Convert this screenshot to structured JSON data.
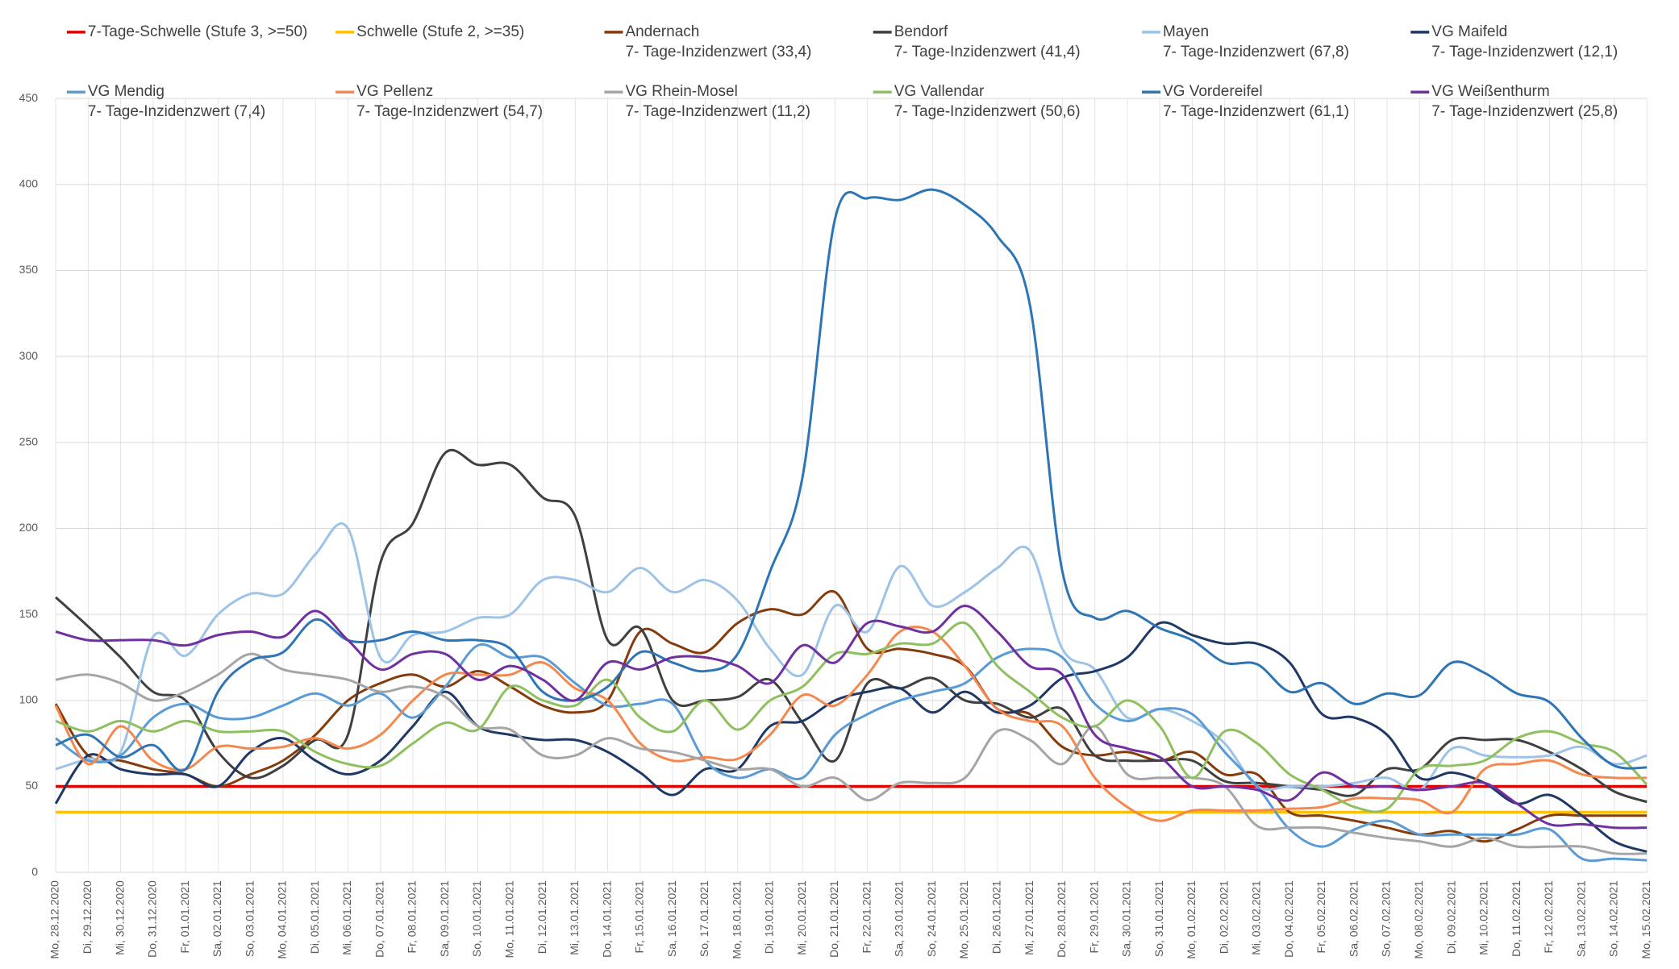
{
  "chart_data": {
    "type": "line",
    "ylim": [
      0,
      450
    ],
    "yticks": [
      0,
      50,
      100,
      150,
      200,
      250,
      300,
      350,
      400,
      450
    ],
    "grid": true,
    "smooth": true,
    "categories": [
      "Mo, 28.12.2020",
      "Di, 29.12.2020",
      "Mi, 30.12.2020",
      "Do, 31.12.2020",
      "Fr, 01.01.2021",
      "Sa, 02.01.2021",
      "So, 03.01.2021",
      "Mo, 04.01.2021",
      "Di, 05.01.2021",
      "Mi, 06.01.2021",
      "Do, 07.01.2021",
      "Fr, 08.01.2021",
      "Sa, 09.01.2021",
      "So, 10.01.2021",
      "Mo, 11.01.2021",
      "Di, 12.01.2021",
      "Mi, 13.01.2021",
      "Do, 14.01.2021",
      "Fr, 15.01.2021",
      "Sa, 16.01.2021",
      "So, 17.01.2021",
      "Mo, 18.01.2021",
      "Di, 19.01.2021",
      "Mi, 20.01.2021",
      "Do, 21.01.2021",
      "Fr, 22.01.2021",
      "Sa, 23.01.2021",
      "So, 24.01.2021",
      "Mo, 25.01.2021",
      "Di, 26.01.2021",
      "Mi, 27.01.2021",
      "Do, 28.01.2021",
      "Fr, 29.01.2021",
      "Sa, 30.01.2021",
      "So, 31.01.2021",
      "Mo, 01.02.2021",
      "Di, 02.02.2021",
      "Mi, 03.02.2021",
      "Do, 04.02.2021",
      "Fr, 05.02.2021",
      "Sa, 06.02.2021",
      "So, 07.02.2021",
      "Mo, 08.02.2021",
      "Di, 09.02.2021",
      "Mi, 10.02.2021",
      "Do, 11.02.2021",
      "Fr, 12.02.2021",
      "Sa, 13.02.2021",
      "So, 14.02.2021",
      "Mo, 15.02.2021"
    ],
    "series": [
      {
        "name": "7-Tage-Schwelle (Stufe 3, >=50)",
        "color": "#e00000",
        "values": [
          50,
          50,
          50,
          50,
          50,
          50,
          50,
          50,
          50,
          50,
          50,
          50,
          50,
          50,
          50,
          50,
          50,
          50,
          50,
          50,
          50,
          50,
          50,
          50,
          50,
          50,
          50,
          50,
          50,
          50,
          50,
          50,
          50,
          50,
          50,
          50,
          50,
          50,
          50,
          50,
          50,
          50,
          50,
          50,
          50,
          50,
          50,
          50,
          50,
          50
        ]
      },
      {
        "name": "Schwelle (Stufe 2, >=35)",
        "color": "#ffc000",
        "values": [
          35,
          35,
          35,
          35,
          35,
          35,
          35,
          35,
          35,
          35,
          35,
          35,
          35,
          35,
          35,
          35,
          35,
          35,
          35,
          35,
          35,
          35,
          35,
          35,
          35,
          35,
          35,
          35,
          35,
          35,
          35,
          35,
          35,
          35,
          35,
          35,
          35,
          35,
          35,
          35,
          35,
          35,
          35,
          35,
          35,
          35,
          35,
          35,
          35,
          35
        ]
      },
      {
        "name": "Andernach",
        "note": "7- Tage-Inzidenzwert (33,4)",
        "color": "#843c0c",
        "values": [
          98,
          68,
          65,
          60,
          57,
          50,
          57,
          65,
          80,
          100,
          110,
          115,
          108,
          117,
          108,
          97,
          93,
          100,
          140,
          133,
          128,
          145,
          153,
          150,
          163,
          130,
          130,
          127,
          120,
          95,
          92,
          73,
          68,
          70,
          65,
          70,
          57,
          57,
          35,
          33,
          30,
          26,
          22,
          24,
          18,
          25,
          33,
          33,
          33,
          33
        ]
      },
      {
        "name": "Bendorf",
        "note": "7- Tage-Inzidenzwert (41,4)",
        "color": "#404040",
        "values": [
          160,
          143,
          125,
          105,
          100,
          70,
          55,
          62,
          77,
          80,
          180,
          203,
          244,
          237,
          237,
          218,
          207,
          135,
          142,
          100,
          100,
          102,
          112,
          87,
          65,
          110,
          107,
          113,
          100,
          98,
          90,
          95,
          68,
          65,
          65,
          65,
          53,
          52,
          50,
          48,
          45,
          60,
          60,
          77,
          77,
          77,
          70,
          60,
          47,
          41
        ]
      },
      {
        "name": "Mayen",
        "note": "7- Tage-Inzidenzwert (67,8)",
        "color": "#9dc3e6",
        "values": [
          60,
          66,
          70,
          137,
          126,
          150,
          162,
          162,
          185,
          200,
          125,
          138,
          140,
          148,
          150,
          170,
          170,
          163,
          177,
          163,
          170,
          158,
          130,
          115,
          155,
          140,
          178,
          155,
          163,
          177,
          187,
          130,
          118,
          90,
          95,
          88,
          75,
          50,
          50,
          50,
          52,
          55,
          48,
          72,
          68,
          67,
          68,
          73,
          63,
          68
        ]
      },
      {
        "name": "VG Maifeld",
        "note": "7- Tage-Inzidenzwert (12,1)",
        "color": "#1f3864",
        "values": [
          40,
          68,
          60,
          57,
          57,
          50,
          70,
          78,
          65,
          57,
          65,
          85,
          105,
          85,
          80,
          77,
          77,
          70,
          58,
          45,
          60,
          60,
          85,
          88,
          100,
          105,
          107,
          93,
          105,
          93,
          97,
          113,
          117,
          125,
          145,
          138,
          133,
          133,
          122,
          92,
          90,
          80,
          55,
          58,
          52,
          40,
          45,
          33,
          18,
          12
        ]
      },
      {
        "name": "VG Mendig",
        "note": "7- Tage-Inzidenzwert (7,4)",
        "color": "#5b9bd5",
        "values": [
          78,
          65,
          68,
          90,
          98,
          90,
          90,
          97,
          104,
          97,
          104,
          90,
          108,
          132,
          125,
          125,
          110,
          97,
          98,
          98,
          65,
          55,
          60,
          55,
          80,
          92,
          100,
          105,
          110,
          125,
          130,
          125,
          98,
          88,
          95,
          92,
          70,
          50,
          25,
          15,
          25,
          30,
          22,
          22,
          22,
          22,
          25,
          8,
          8,
          7
        ]
      },
      {
        "name": "VG Pellenz",
        "note": "7- Tage-Inzidenzwert (54,7)",
        "color": "#f4884f",
        "values": [
          97,
          63,
          85,
          65,
          60,
          73,
          72,
          73,
          78,
          72,
          80,
          100,
          115,
          115,
          115,
          122,
          107,
          100,
          75,
          65,
          67,
          66,
          80,
          103,
          97,
          115,
          140,
          140,
          120,
          95,
          88,
          85,
          55,
          38,
          30,
          36,
          36,
          36,
          37,
          38,
          43,
          43,
          42,
          35,
          60,
          63,
          65,
          57,
          55,
          55
        ]
      },
      {
        "name": "VG Rhein-Mosel",
        "note": "7- Tage-Inzidenzwert (11,2)",
        "color": "#a5a5a5",
        "values": [
          112,
          115,
          110,
          100,
          105,
          115,
          127,
          118,
          115,
          112,
          105,
          108,
          102,
          85,
          83,
          68,
          68,
          78,
          72,
          70,
          65,
          60,
          60,
          50,
          55,
          42,
          52,
          52,
          55,
          82,
          77,
          63,
          85,
          57,
          55,
          55,
          50,
          27,
          26,
          26,
          23,
          20,
          18,
          15,
          20,
          15,
          15,
          15,
          11,
          11
        ]
      },
      {
        "name": "VG Vallendar",
        "note": "7- Tage-Inzidenzwert (50,6)",
        "color": "#8fc060",
        "values": [
          88,
          82,
          88,
          82,
          88,
          82,
          82,
          82,
          70,
          63,
          62,
          75,
          87,
          83,
          108,
          100,
          97,
          112,
          90,
          82,
          100,
          83,
          100,
          108,
          127,
          127,
          133,
          133,
          145,
          120,
          105,
          90,
          85,
          100,
          85,
          55,
          82,
          75,
          57,
          48,
          38,
          37,
          60,
          62,
          65,
          78,
          82,
          75,
          70,
          51
        ]
      },
      {
        "name": "VG Vordereifel",
        "note": "7- Tage-Inzidenzwert (61,1)",
        "color": "#2e75b6",
        "values": [
          74,
          80,
          67,
          74,
          60,
          105,
          123,
          128,
          147,
          135,
          135,
          140,
          135,
          135,
          130,
          105,
          100,
          108,
          128,
          122,
          117,
          127,
          175,
          230,
          380,
          392,
          391,
          397,
          388,
          370,
          330,
          175,
          148,
          152,
          142,
          135,
          122,
          121,
          105,
          110,
          98,
          104,
          103,
          122,
          116,
          104,
          99,
          78,
          62,
          61
        ]
      },
      {
        "name": "VG Weißenthurm",
        "note": "7- Tage-Inzidenzwert (25,8)",
        "color": "#7030a0",
        "values": [
          140,
          135,
          135,
          135,
          132,
          138,
          140,
          137,
          152,
          135,
          118,
          127,
          127,
          112,
          120,
          112,
          100,
          122,
          118,
          125,
          125,
          120,
          110,
          132,
          122,
          145,
          143,
          140,
          155,
          140,
          120,
          115,
          80,
          72,
          67,
          50,
          50,
          48,
          42,
          58,
          50,
          50,
          48,
          50,
          52,
          40,
          28,
          28,
          26,
          26
        ]
      }
    ]
  }
}
